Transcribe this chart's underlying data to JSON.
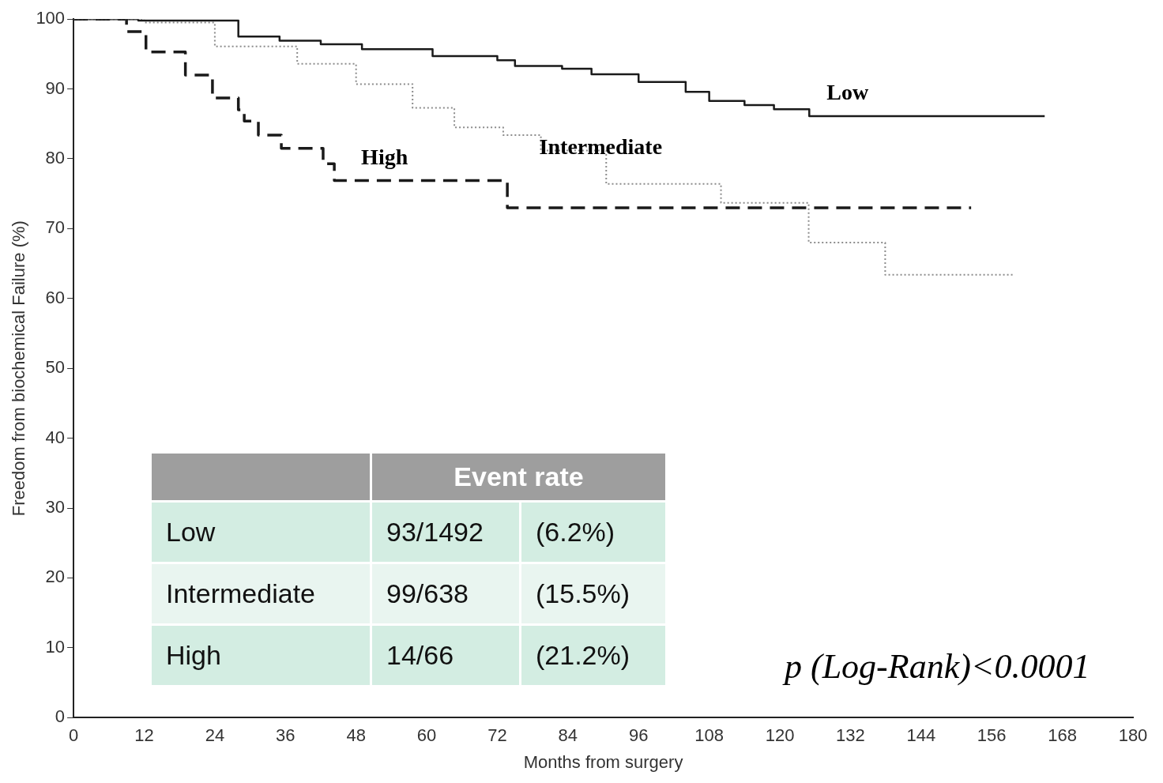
{
  "chart_data": {
    "type": "step",
    "xlabel": "Months from surgery",
    "ylabel": "Freedom from biochemical Failure (%)",
    "xlim": [
      0,
      180
    ],
    "xticks": [
      0,
      12,
      24,
      36,
      48,
      60,
      72,
      84,
      96,
      108,
      120,
      132,
      144,
      156,
      168,
      180
    ],
    "ylim": [
      0,
      100
    ],
    "yticks": [
      0,
      10,
      20,
      30,
      40,
      50,
      60,
      70,
      80,
      90,
      100
    ],
    "grid": false,
    "legend": false,
    "marker": "none",
    "series": [
      {
        "name": "Low",
        "color": "#1a1a1a",
        "line_style": "solid",
        "x": [
          0,
          11,
          28,
          35,
          42,
          49,
          61,
          72,
          75,
          83,
          88,
          96,
          104,
          108,
          114,
          119,
          125,
          165
        ],
        "values": [
          100,
          99.8,
          97.5,
          96.9,
          96.4,
          95.7,
          94.7,
          94.1,
          93.3,
          92.9,
          92.1,
          91,
          89.6,
          88.3,
          87.7,
          87.1,
          86.1,
          86.1
        ]
      },
      {
        "name": "Intermediate",
        "color": "#8c8c8c",
        "line_style": "dotted",
        "x": [
          0,
          12,
          24,
          38,
          48,
          57.6,
          64.7,
          73,
          79.4,
          90.5,
          110,
          124.9,
          137.9,
          159.6
        ],
        "values": [
          100,
          99.5,
          96.1,
          93.6,
          90.7,
          87.3,
          84.5,
          83.4,
          81.2,
          76.4,
          73.7,
          68,
          63.4,
          63.4
        ]
      },
      {
        "name": "High",
        "color": "#1a1a1a",
        "line_style": "dashed",
        "x": [
          0,
          9,
          12.3,
          19,
          23.6,
          28,
          29,
          31.4,
          35.3,
          42.4,
          44.3,
          73.7,
          152.5
        ],
        "values": [
          100,
          98.2,
          95.3,
          92,
          88.7,
          87,
          85.4,
          83.4,
          81.5,
          79.3,
          76.9,
          73,
          73
        ]
      }
    ],
    "annotations": [
      "p (Log-Rank)<0.0001",
      "Event rate",
      "93/1492",
      "(6.2%)",
      "99/638",
      "(15.5%)",
      "14/66",
      "(21.2%)"
    ]
  }
}
